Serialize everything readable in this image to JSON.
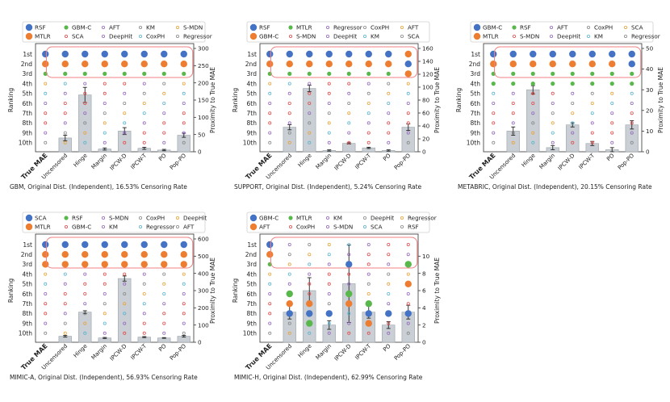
{
  "colors": {
    "blue": "#4472C4",
    "orange": "#ED7D31",
    "green": "#59B84B",
    "bar": "#C9CFD4",
    "box": "#F08080",
    "red": "#E04B4B",
    "purple": "#9467BD",
    "cyan": "#5AB4D0",
    "gray": "#888888",
    "gold": "#E8A33A"
  },
  "chart_data": [
    {
      "type": "bar",
      "title": "GBM, Original Dist. (Independent), 16.53% Censoring Rate",
      "categories": [
        "True MAE",
        "Uncensored",
        "Hinge",
        "Margin",
        "IPCW-D",
        "IPCW-T",
        "PO",
        "Pop-PO"
      ],
      "ylabel_left": "Ranking",
      "ylabel_right": "Proximity to True MAE",
      "ranks": [
        "1st",
        "2nd",
        "3rd",
        "4th",
        "5th",
        "6th",
        "7th",
        "8th",
        "9th",
        "10th"
      ],
      "ylim": [
        0,
        300
      ],
      "yticks": [
        0,
        50,
        100,
        150,
        200,
        250,
        300
      ],
      "values": [
        0,
        40,
        165,
        8,
        60,
        10,
        5,
        48
      ],
      "errors": [
        0,
        8,
        22,
        3,
        10,
        3,
        2,
        6
      ],
      "legend": [
        {
          "name": "RSF",
          "marker": "big",
          "color": "blue"
        },
        {
          "name": "GBM-C",
          "marker": "mid",
          "color": "green"
        },
        {
          "name": "AFT",
          "marker": "ring",
          "color": "purple"
        },
        {
          "name": "KM",
          "marker": "ring",
          "color": "gray"
        },
        {
          "name": "S-MDN",
          "marker": "ring",
          "color": "gold"
        },
        {
          "name": "MTLR",
          "marker": "big",
          "color": "orange"
        },
        {
          "name": "SCA",
          "marker": "ring",
          "color": "red"
        },
        {
          "name": "DeepHit",
          "marker": "ring",
          "color": "purple"
        },
        {
          "name": "CoxPH",
          "marker": "ring",
          "color": "cyan"
        },
        {
          "name": "Regressor",
          "marker": "ring",
          "color": "gray"
        }
      ]
    },
    {
      "type": "bar",
      "title": "SUPPORT, Original Dist. (Independent), 5.24% Censoring Rate",
      "categories": [
        "True MAE",
        "Uncensored",
        "Hinge",
        "Margin",
        "IPCW-D",
        "IPCW-T",
        "PO",
        "Pop-PO"
      ],
      "ylabel_left": "Ranking",
      "ylabel_right": "Proximity to True MAE",
      "ranks": [
        "1st",
        "2nd",
        "3rd",
        "4th",
        "5th",
        "6th",
        "7th",
        "8th",
        "9th",
        "10th"
      ],
      "ylim": [
        0,
        160
      ],
      "yticks": [
        0,
        20,
        40,
        60,
        80,
        100,
        120,
        140,
        160
      ],
      "values": [
        0,
        38,
        98,
        2,
        13,
        6,
        2,
        38
      ],
      "errors": [
        0,
        4,
        5,
        1,
        1,
        1,
        1,
        5
      ],
      "legend": [
        {
          "name": "RSF",
          "marker": "big",
          "color": "blue"
        },
        {
          "name": "MTLR",
          "marker": "mid",
          "color": "green"
        },
        {
          "name": "Regressor",
          "marker": "ring",
          "color": "purple"
        },
        {
          "name": "CoxPH",
          "marker": "ring",
          "color": "gray"
        },
        {
          "name": "AFT",
          "marker": "ring",
          "color": "gold"
        },
        {
          "name": "GBM-C",
          "marker": "big",
          "color": "orange"
        },
        {
          "name": "S-MDN",
          "marker": "ring",
          "color": "red"
        },
        {
          "name": "DeepHit",
          "marker": "ring",
          "color": "purple"
        },
        {
          "name": "KM",
          "marker": "ring",
          "color": "cyan"
        },
        {
          "name": "SCA",
          "marker": "ring",
          "color": "gray"
        }
      ]
    },
    {
      "type": "bar",
      "title": "METABRIC, Original Dist. (Independent), 20.15% Censoring Rate",
      "categories": [
        "True MAE",
        "Uncensored",
        "Hinge",
        "Margin",
        "IPCW-D",
        "IPCW-T",
        "PO",
        "Pop-PO"
      ],
      "ylabel_left": "Ranking",
      "ylabel_right": "Proximity to True MAE",
      "ranks": [
        "1st",
        "2nd",
        "3rd",
        "4th",
        "5th",
        "6th",
        "7th",
        "8th",
        "9th",
        "10th"
      ],
      "ylim": [
        0,
        50
      ],
      "yticks": [
        0,
        10,
        20,
        30,
        40,
        50
      ],
      "values": [
        0,
        10,
        30,
        2,
        13,
        4,
        1,
        13
      ],
      "errors": [
        0,
        2,
        2,
        1,
        1,
        1,
        1,
        2
      ],
      "legend": [
        {
          "name": "GBM-C",
          "marker": "big",
          "color": "blue"
        },
        {
          "name": "RSF",
          "marker": "mid",
          "color": "green"
        },
        {
          "name": "AFT",
          "marker": "ring",
          "color": "purple"
        },
        {
          "name": "CoxPH",
          "marker": "ring",
          "color": "gray"
        },
        {
          "name": "SCA",
          "marker": "ring",
          "color": "gold"
        },
        {
          "name": "MTLR",
          "marker": "big",
          "color": "orange"
        },
        {
          "name": "S-MDN",
          "marker": "ring",
          "color": "red"
        },
        {
          "name": "DeepHit",
          "marker": "ring",
          "color": "purple"
        },
        {
          "name": "KM",
          "marker": "ring",
          "color": "cyan"
        },
        {
          "name": "Regressor",
          "marker": "ring",
          "color": "gray"
        }
      ]
    },
    {
      "type": "bar",
      "title": "MIMIC-A, Original Dist. (Independent), 56.93% Censoring Rate",
      "categories": [
        "True MAE",
        "Uncensored",
        "Hinge",
        "Margin",
        "IPCW-D",
        "IPCW-T",
        "PO",
        "Pop-PO"
      ],
      "ylabel_left": "Ranking",
      "ylabel_right": "Proximity to True MAE",
      "ranks": [
        "1st",
        "2nd",
        "3rd",
        "4th",
        "5th",
        "6th",
        "7th",
        "8th",
        "9th",
        "10th"
      ],
      "ylim": [
        0,
        600
      ],
      "yticks": [
        0,
        100,
        200,
        300,
        400,
        500,
        600
      ],
      "values": [
        0,
        35,
        175,
        25,
        370,
        30,
        25,
        35
      ],
      "errors": [
        0,
        5,
        8,
        3,
        15,
        3,
        2,
        5
      ],
      "legend": [
        {
          "name": "SCA",
          "marker": "big",
          "color": "blue"
        },
        {
          "name": "RSF",
          "marker": "mid",
          "color": "green"
        },
        {
          "name": "S-MDN",
          "marker": "ring",
          "color": "purple"
        },
        {
          "name": "CoxPH",
          "marker": "ring",
          "color": "gray"
        },
        {
          "name": "DeepHit",
          "marker": "ring",
          "color": "gold"
        },
        {
          "name": "MTLR",
          "marker": "big",
          "color": "orange"
        },
        {
          "name": "GBM-C",
          "marker": "ring",
          "color": "red"
        },
        {
          "name": "KM",
          "marker": "ring",
          "color": "purple"
        },
        {
          "name": "Regressor",
          "marker": "ring",
          "color": "cyan"
        },
        {
          "name": "AFT",
          "marker": "ring",
          "color": "gray"
        }
      ]
    },
    {
      "type": "bar",
      "title": "MIMIC-H, Original Dist. (Independent), 62.99% Censoring Rate",
      "categories": [
        "True MAE",
        "Uncensored",
        "Hinge",
        "Margin",
        "IPCW-D",
        "IPCW-T",
        "PO",
        "Pop-PO"
      ],
      "ylabel_left": "Ranking",
      "ylabel_right": "Proximity to True MAE",
      "ranks": [
        "1st",
        "2nd",
        "3rd",
        "4th",
        "5th",
        "6th",
        "7th",
        "8th",
        "9th",
        "10th"
      ],
      "ylim": [
        0,
        12
      ],
      "yticks": [
        0,
        2,
        4,
        6,
        8,
        10
      ],
      "values": [
        0,
        3.5,
        6,
        2,
        6.8,
        3.5,
        2,
        3.5
      ],
      "errors": [
        0,
        0.8,
        1.5,
        0.5,
        4.5,
        0.7,
        0.4,
        0.8
      ],
      "legend": [
        {
          "name": "GBM-C",
          "marker": "big",
          "color": "blue"
        },
        {
          "name": "MTLR",
          "marker": "mid",
          "color": "green"
        },
        {
          "name": "KM",
          "marker": "ring",
          "color": "purple"
        },
        {
          "name": "DeepHit",
          "marker": "ring",
          "color": "gray"
        },
        {
          "name": "Regressor",
          "marker": "ring",
          "color": "gold"
        },
        {
          "name": "AFT",
          "marker": "big",
          "color": "orange"
        },
        {
          "name": "CoxPH",
          "marker": "ring",
          "color": "red"
        },
        {
          "name": "S-MDN",
          "marker": "ring",
          "color": "purple"
        },
        {
          "name": "SCA",
          "marker": "ring",
          "color": "cyan"
        },
        {
          "name": "RSF",
          "marker": "ring",
          "color": "gray"
        }
      ]
    }
  ]
}
